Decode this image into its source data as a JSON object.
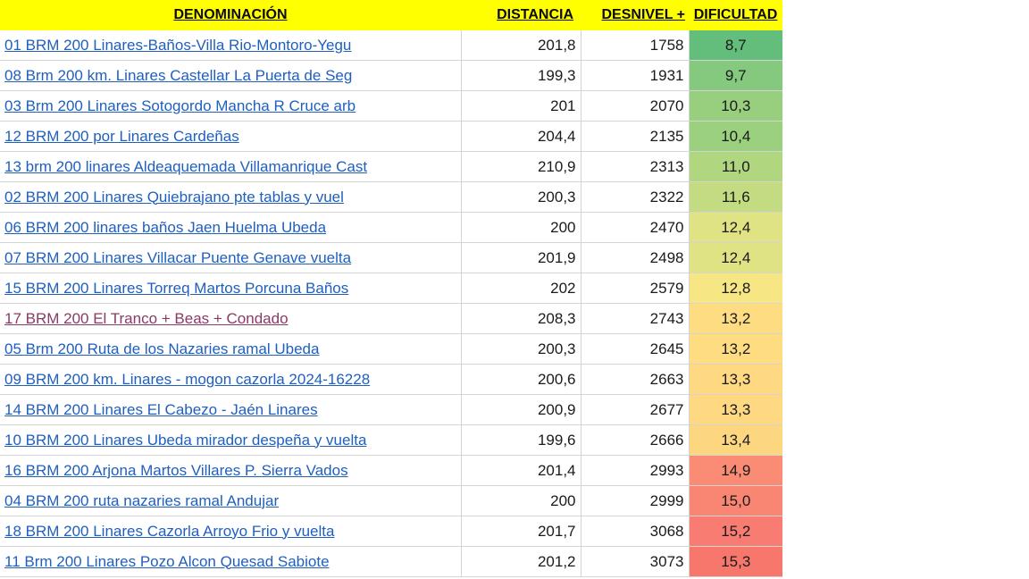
{
  "headers": {
    "name": "DENOMINACIÓN",
    "distance": "DISTANCIA",
    "elevation": "DESNIVEL +",
    "difficulty": "DIFICULTAD"
  },
  "rows": [
    {
      "name": "01 BRM 200 Linares-Baños-Villa Rio-Montoro-Yegu",
      "distance": "201,8",
      "elevation": "1758",
      "difficulty": "8,7",
      "color": "#63be7b",
      "visited": false
    },
    {
      "name": "08 Brm 200 km. Linares Castellar La Puerta de Seg",
      "distance": "199,3",
      "elevation": "1931",
      "difficulty": "9,7",
      "color": "#84c97d",
      "visited": false
    },
    {
      "name": "03 Brm 200 Linares Sotogordo Mancha R Cruce arb",
      "distance": "201",
      "elevation": "2070",
      "difficulty": "10,3",
      "color": "#98cf7e",
      "visited": false
    },
    {
      "name": "12 BRM 200 por Linares Cardeñas",
      "distance": "204,4",
      "elevation": "2135",
      "difficulty": "10,4",
      "color": "#9bd07e",
      "visited": false
    },
    {
      "name": "13 brm 200 linares Aldeaquemada Villamanrique Cast",
      "distance": "210,9",
      "elevation": "2313",
      "difficulty": "11,0",
      "color": "#b0d67f",
      "visited": false
    },
    {
      "name": "02 BRM 200 Linares Quiebrajano pte tablas y vuel",
      "distance": "200,3",
      "elevation": "2322",
      "difficulty": "11,6",
      "color": "#c4dc81",
      "visited": false
    },
    {
      "name": "06 BRM 200 linares baños Jaen Huelma Ubeda",
      "distance": "200",
      "elevation": "2470",
      "difficulty": "12,4",
      "color": "#e0e383",
      "visited": false
    },
    {
      "name": "07 BRM 200 Linares Villacar Puente Genave vuelta",
      "distance": "201,9",
      "elevation": "2498",
      "difficulty": "12,4",
      "color": "#e0e383",
      "visited": false
    },
    {
      "name": "15 BRM 200 Linares Torreq Martos Porcuna Baños",
      "distance": "202",
      "elevation": "2579",
      "difficulty": "12,8",
      "color": "#f6e784",
      "visited": false
    },
    {
      "name": "17 BRM 200 El Tranco + Beas + Condado",
      "distance": "208,3",
      "elevation": "2743",
      "difficulty": "13,2",
      "color": "#fedc81",
      "visited": true
    },
    {
      "name": "05 Brm 200 Ruta de los Nazaries ramal Ubeda",
      "distance": "200,3",
      "elevation": "2645",
      "difficulty": "13,2",
      "color": "#fedc81",
      "visited": false
    },
    {
      "name": "09 BRM 200 km. Linares - mogon cazorla 2024-16228",
      "distance": "200,6",
      "elevation": "2663",
      "difficulty": "13,3",
      "color": "#fed981",
      "visited": false
    },
    {
      "name": "14 BRM 200 Linares El Cabezo - Jaén Linares",
      "distance": "200,9",
      "elevation": "2677",
      "difficulty": "13,3",
      "color": "#fed981",
      "visited": false
    },
    {
      "name": "10 BRM 200 Linares Ubeda mirador despeña y vuelta",
      "distance": "199,6",
      "elevation": "2666",
      "difficulty": "13,4",
      "color": "#fdd680",
      "visited": false
    },
    {
      "name": "16 BRM 200 Arjona Martos Villares P. Sierra Vados",
      "distance": "201,4",
      "elevation": "2993",
      "difficulty": "14,9",
      "color": "#fa8b74",
      "visited": false
    },
    {
      "name": "04 BRM 200 ruta nazaries ramal Andujar",
      "distance": "200",
      "elevation": "2999",
      "difficulty": "15,0",
      "color": "#f98673",
      "visited": false
    },
    {
      "name": "18 BRM 200 Linares Cazorla Arroyo Frio y vuelta",
      "distance": "201,7",
      "elevation": "3068",
      "difficulty": "15,2",
      "color": "#f87c71",
      "visited": false
    },
    {
      "name": "11 Brm 200 Linares Pozo Alcon Quesad Sabiote",
      "distance": "201,2",
      "elevation": "3073",
      "difficulty": "15,3",
      "color": "#f8776d",
      "visited": false
    }
  ]
}
